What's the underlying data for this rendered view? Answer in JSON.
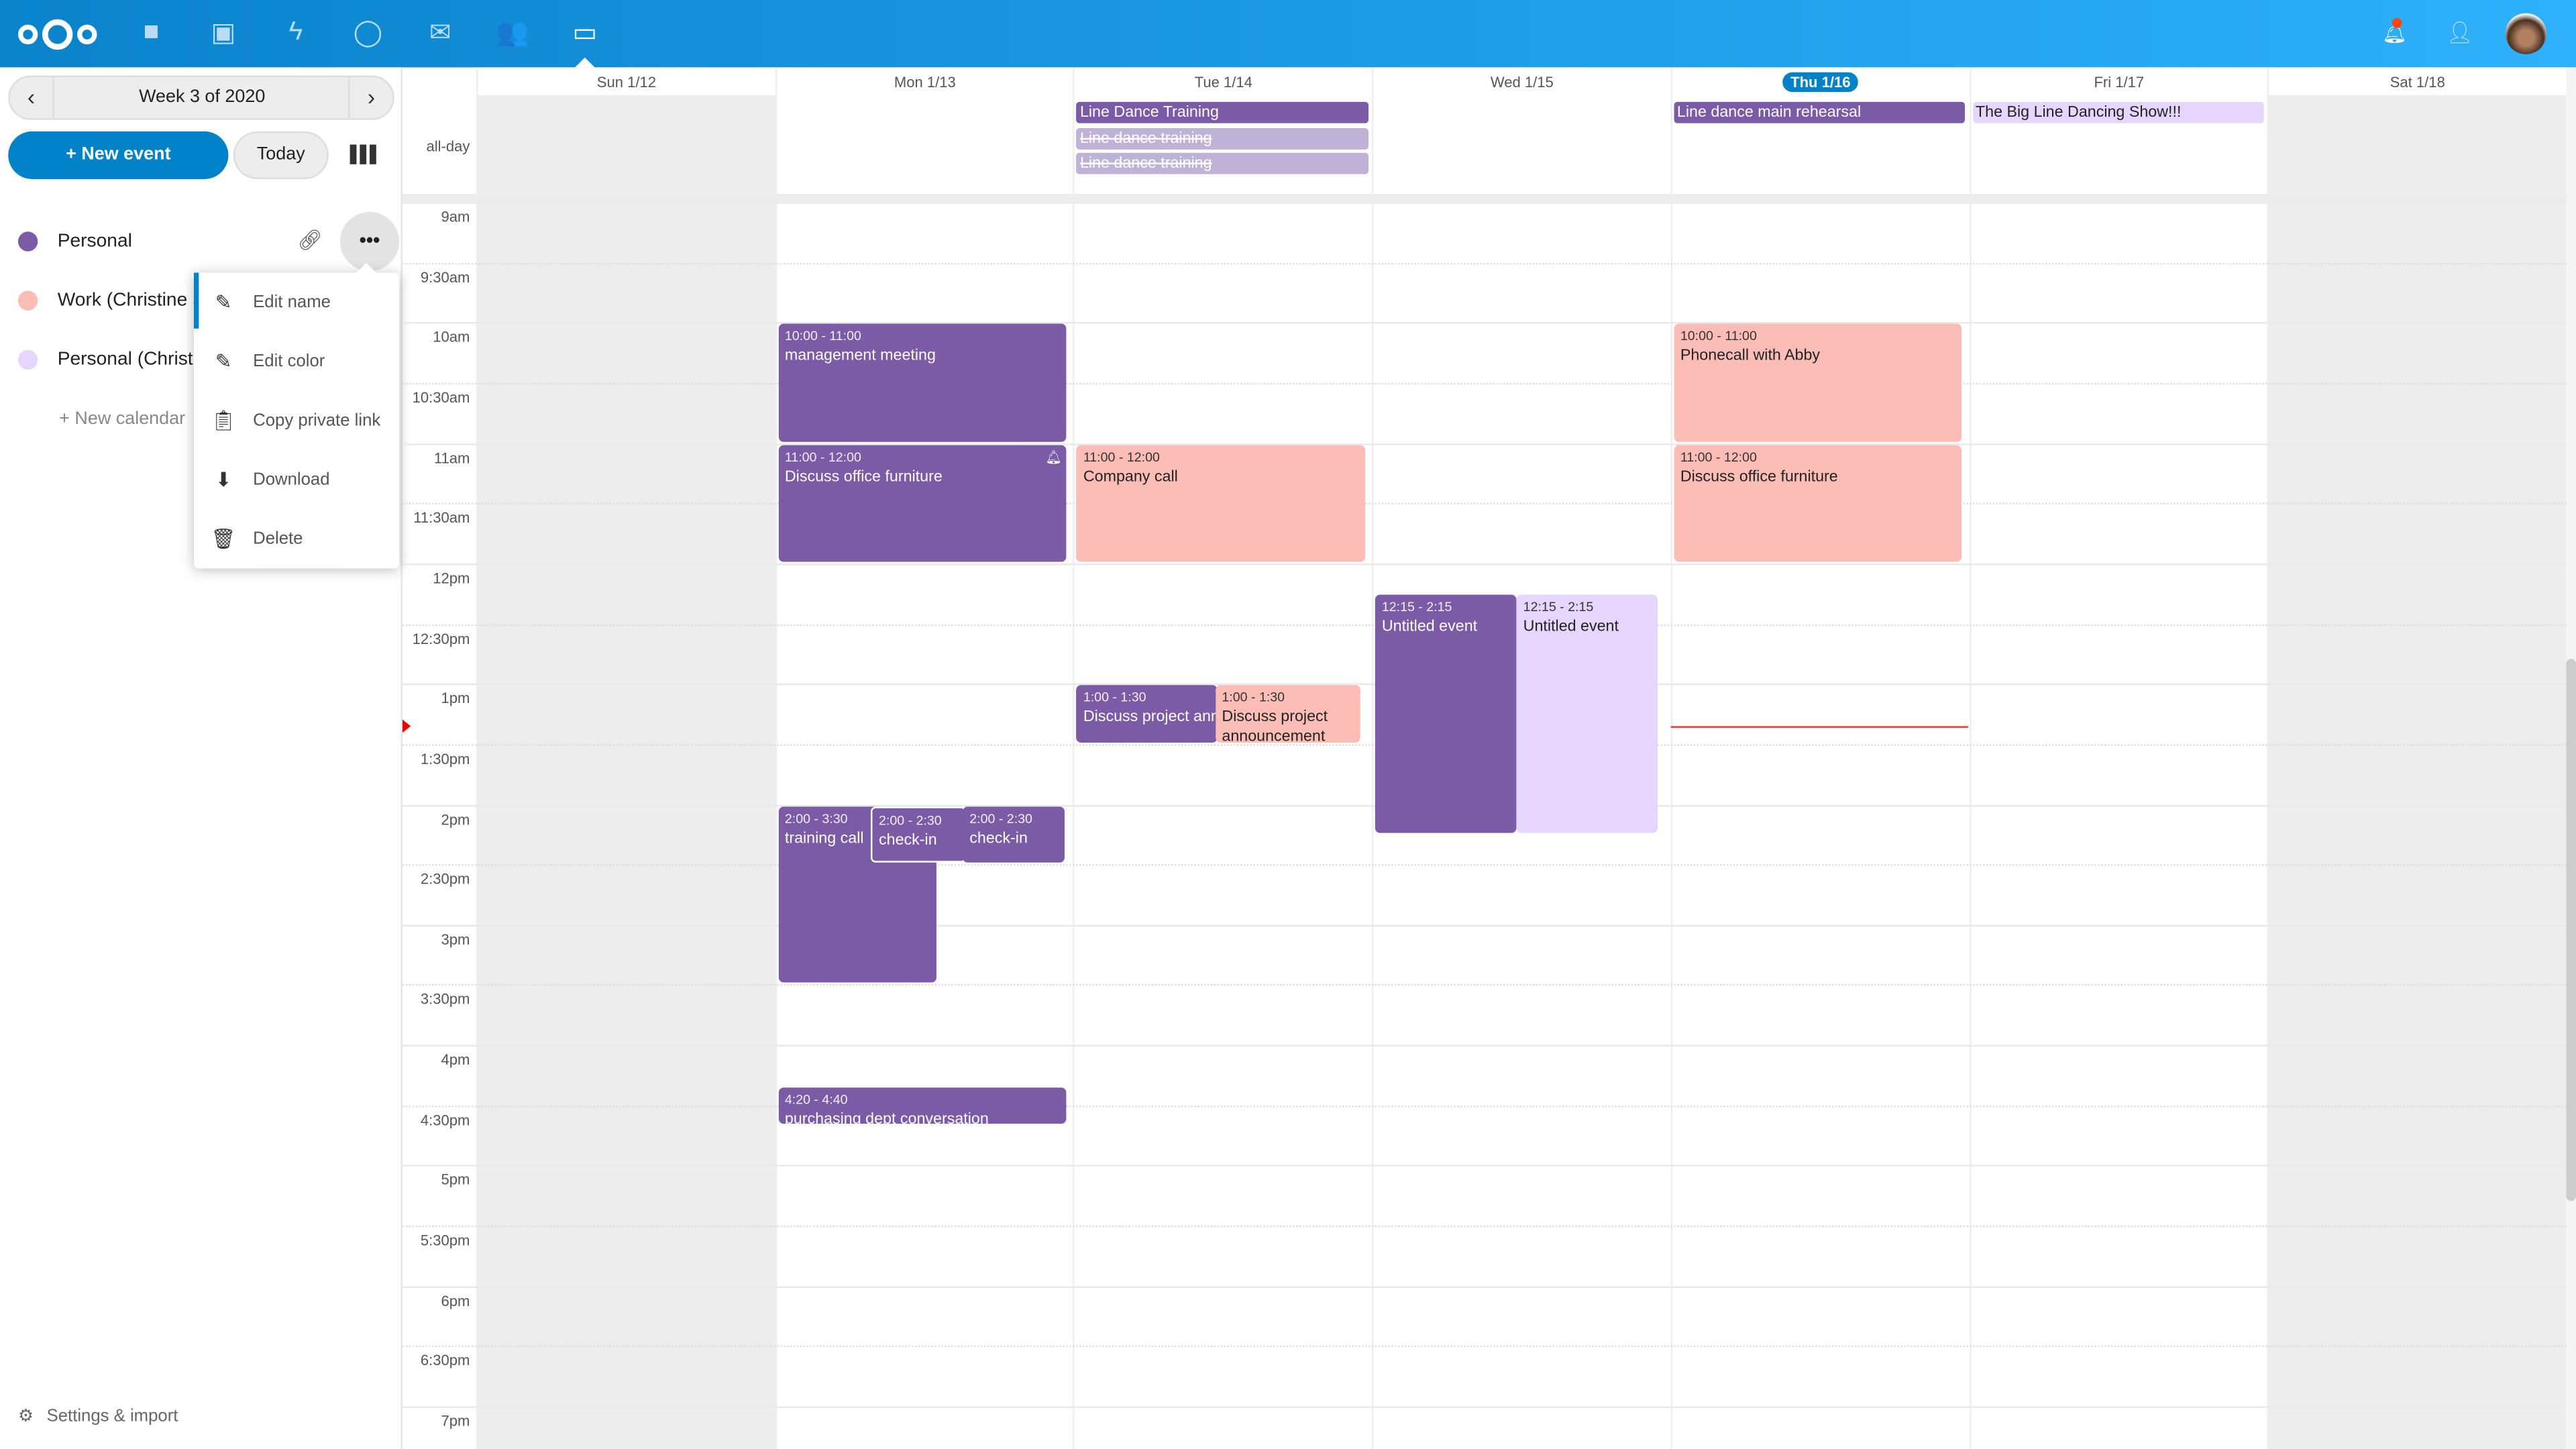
{
  "header": {
    "apps": [
      "files-icon",
      "photos-icon",
      "activity-icon",
      "talk-icon",
      "mail-icon",
      "contacts-icon",
      "calendar-icon"
    ],
    "active_app": "calendar-icon",
    "colors": {
      "from": "#0a83cb",
      "to": "#2eb0fb"
    }
  },
  "sidebar": {
    "week_label": "Week 3 of 2020",
    "new_event": "+ New event",
    "today": "Today",
    "calendars": [
      {
        "name": "Personal",
        "color": "#7b5aa6"
      },
      {
        "name": "Work (Christine S",
        "color": "#fdbdb7"
      },
      {
        "name": "Personal (Christi",
        "color": "#e6d6fd"
      }
    ],
    "new_calendar": "+ New calendar",
    "settings": "Settings & import",
    "menu": [
      "Edit name",
      "Edit color",
      "Copy private link",
      "Download",
      "Delete"
    ]
  },
  "calendar": {
    "days": [
      "Sun 1/12",
      "Mon 1/13",
      "Tue 1/14",
      "Wed 1/15",
      "Thu 1/16",
      "Fri 1/17",
      "Sat 1/18"
    ],
    "today_index": 4,
    "allday_label": "all-day",
    "time_labels": [
      "9am",
      "9:30am",
      "10am",
      "10:30am",
      "11am",
      "11:30am",
      "12pm",
      "12:30pm",
      "1pm",
      "1:30pm",
      "2pm",
      "2:30pm",
      "3pm",
      "3:30pm",
      "4pm",
      "4:30pm",
      "5pm",
      "5:30pm",
      "6pm",
      "6:30pm",
      "7pm"
    ],
    "allday_events": [
      {
        "day": "Tue 1/14",
        "title": "Line Dance Training"
      },
      {
        "day": "Tue 1/14",
        "title": "Line dance training",
        "cancelled": true
      },
      {
        "day": "Tue 1/14",
        "title": "Line dance training",
        "cancelled": true
      },
      {
        "day": "Thu 1/16",
        "title": "Line dance main rehearsal"
      },
      {
        "day": "Fri 1/17",
        "title": "The Big Line Dancing Show!!!"
      }
    ],
    "events": [
      {
        "day": "Mon 1/13",
        "time": "10:00 - 11:00",
        "title": "management meeting",
        "calendar": "Personal"
      },
      {
        "day": "Mon 1/13",
        "time": "11:00 - 12:00",
        "title": "Discuss office furniture",
        "calendar": "Personal",
        "alarm": true
      },
      {
        "day": "Mon 1/13",
        "time": "2:00 - 3:30",
        "title": "training call",
        "calendar": "Personal"
      },
      {
        "day": "Mon 1/13",
        "time": "2:00 - 2:30",
        "title": "check-in",
        "calendar": "Personal"
      },
      {
        "day": "Mon 1/13",
        "time": "2:00 - 2:30",
        "title": "check-in",
        "calendar": "Work"
      },
      {
        "day": "Mon 1/13",
        "time": "4:20 - 4:40",
        "title": "purchasing dept conversation",
        "calendar": "Personal"
      },
      {
        "day": "Tue 1/14",
        "time": "11:00 - 12:00",
        "title": "Company call",
        "calendar": "Work"
      },
      {
        "day": "Tue 1/14",
        "time": "1:00 - 1:30",
        "title": "Discuss project announcement",
        "calendar": "Personal"
      },
      {
        "day": "Tue 1/14",
        "time": "1:00 - 1:30",
        "title": "Discuss project announcement",
        "calendar": "Work"
      },
      {
        "day": "Wed 1/15",
        "time": "12:15 - 2:15",
        "title": "Untitled event",
        "calendar": "Personal"
      },
      {
        "day": "Wed 1/15",
        "time": "12:15 - 2:15",
        "title": "Untitled event",
        "calendar": "Personal (Christi"
      },
      {
        "day": "Thu 1/16",
        "time": "10:00 - 11:00",
        "title": "Phonecall with Abby",
        "calendar": "Work"
      },
      {
        "day": "Thu 1/16",
        "time": "11:00 - 12:00",
        "title": "Discuss office furniture",
        "calendar": "Work"
      }
    ]
  }
}
